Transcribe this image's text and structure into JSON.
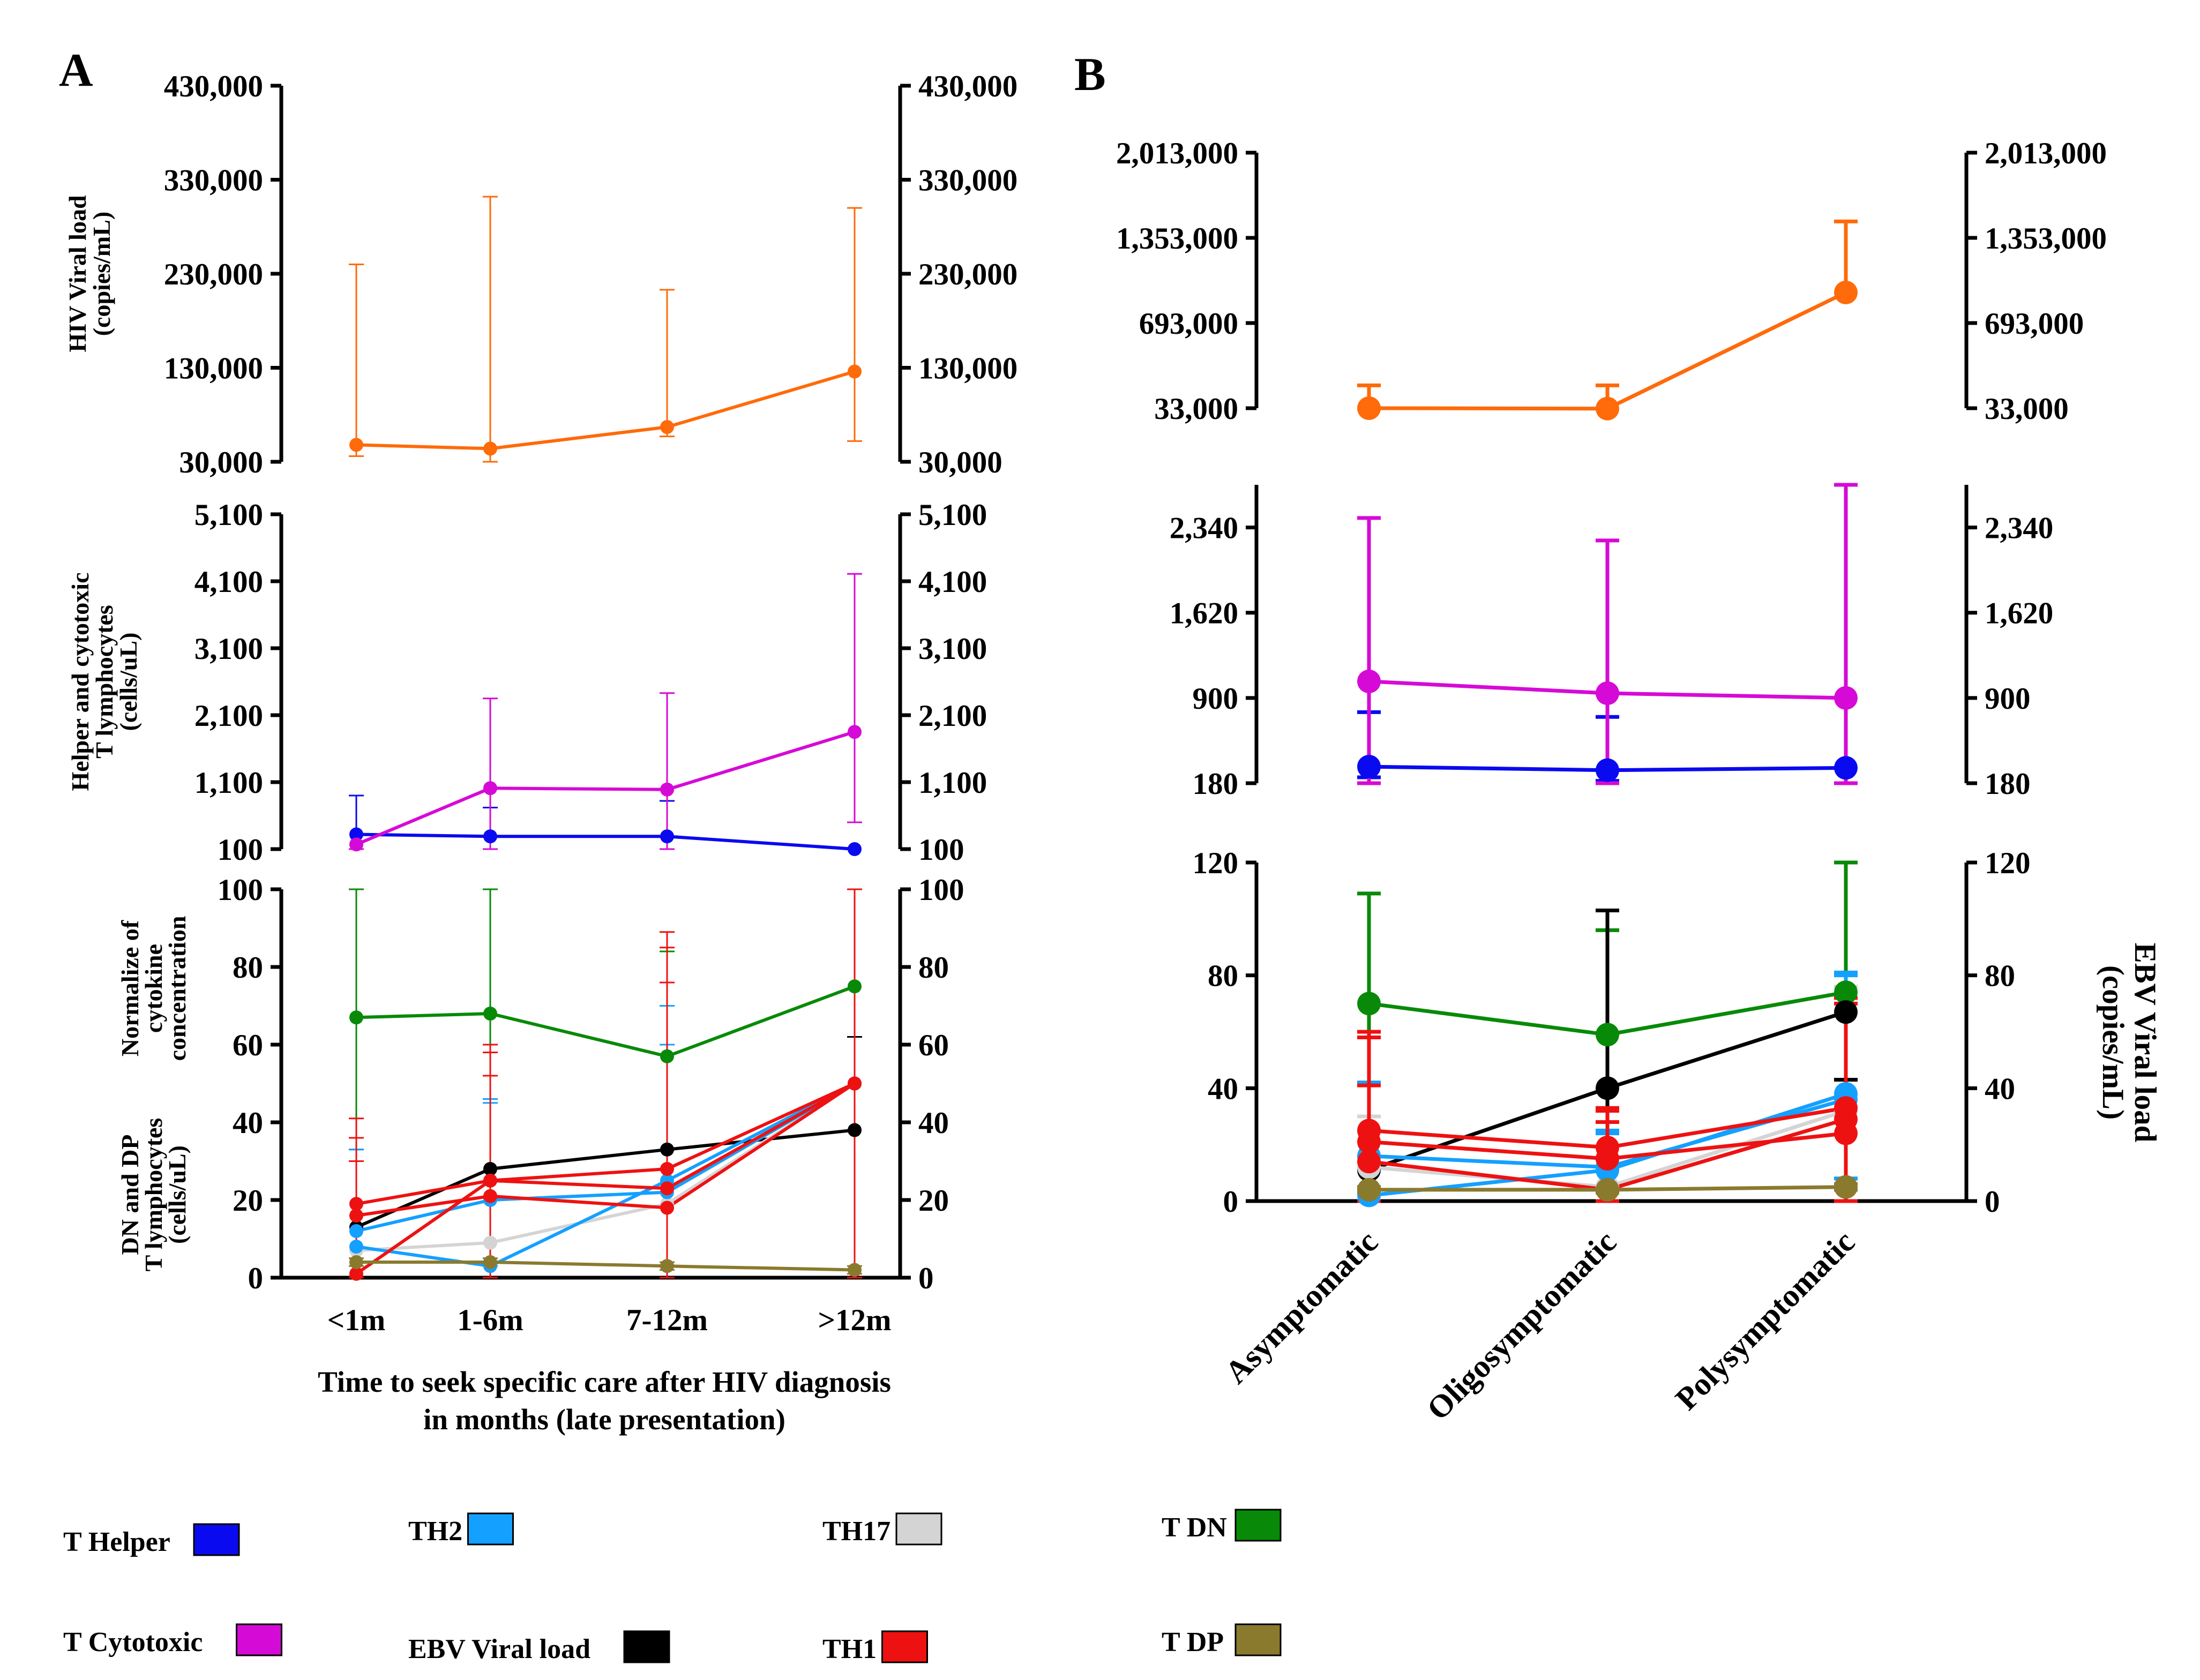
{
  "colors": {
    "t_helper": "#0a0af0",
    "t_cytotoxic": "#d60ad6",
    "th2": "#14a0ff",
    "th17": "#d4d4d4",
    "th1": "#ee1111",
    "t_dn": "#088a08",
    "t_dp": "#8a7a2e",
    "ebv": "#000000",
    "hiv": "#ff6a0a"
  },
  "legend": [
    {
      "label": "T Helper",
      "color_key": "t_helper"
    },
    {
      "label": "TH2",
      "color_key": "th2"
    },
    {
      "label": "TH17",
      "color_key": "th17"
    },
    {
      "label": "T DN",
      "color_key": "t_dn"
    },
    {
      "label": "T Cytotoxic",
      "color_key": "t_cytotoxic"
    },
    {
      "label": "EBV Viral load",
      "color_key": "ebv"
    },
    {
      "label": "TH1",
      "color_key": "th1"
    },
    {
      "label": "T DP",
      "color_key": "t_dp"
    }
  ],
  "chart_data": [
    {
      "panel": "A",
      "type": "line",
      "categories": [
        "<1m",
        "1-6m",
        "7-12m",
        ">12m"
      ],
      "xlabel": "Time to seek specific care after HIV diagnosis in months (late presentation)",
      "subplots": [
        {
          "id": "A1",
          "ylabel": [
            "HIV Viral load",
            "(copies/mL)"
          ],
          "ylim": [
            30000,
            430000
          ],
          "ticks": [
            30000,
            130000,
            230000,
            330000,
            430000
          ],
          "tick_labels": [
            "30,000",
            "130,000",
            "230,000",
            "330,000",
            "430,000"
          ],
          "series": [
            {
              "name": "HIV Viral load",
              "color_key": "hiv",
              "values": [
                48000,
                44000,
                67000,
                126000
              ],
              "err_hi": [
                240000,
                312000,
                213000,
                300000
              ],
              "err_lo": [
                36000,
                30000,
                57000,
                52000
              ],
              "err_width": 3
            }
          ]
        },
        {
          "id": "A2",
          "ylabel": [
            "Helper and cytotoxic",
            "T lymphocytes",
            "(cells/uL)"
          ],
          "ylim": [
            100,
            5100
          ],
          "ticks": [
            100,
            1100,
            2100,
            3100,
            4100,
            5100
          ],
          "tick_labels": [
            "100",
            "1,100",
            "2,100",
            "3,100",
            "4,100",
            "5,100"
          ],
          "series": [
            {
              "name": "T Helper",
              "color_key": "t_helper",
              "values": [
                320,
                290,
                290,
                100
              ],
              "err_hi": [
                900,
                720,
                820,
                100
              ],
              "err_lo": [
                100,
                100,
                100,
                100
              ],
              "err_width": 3
            },
            {
              "name": "T Cytotoxic",
              "color_key": "t_cytotoxic",
              "values": [
                170,
                1010,
                990,
                1850
              ],
              "err_hi": [
                100,
                2350,
                2430,
                4210
              ],
              "err_lo": [
                100,
                100,
                100,
                500
              ],
              "err_width": 3
            }
          ]
        },
        {
          "id": "A3",
          "ylabel": [
            "Normalize of",
            "cytokine",
            "concentration",
            "",
            "DN and DP",
            "T lymphocytes",
            "(cells/uL)"
          ],
          "ylim": [
            0,
            100
          ],
          "ticks": [
            0,
            20,
            40,
            60,
            80,
            100
          ],
          "tick_labels": [
            "0",
            "20",
            "40",
            "60",
            "80",
            "100"
          ],
          "series": [
            {
              "name": "T DN",
              "color_key": "t_dn",
              "values": [
                67,
                68,
                57,
                75
              ],
              "err_hi": [
                100,
                100,
                84,
                100
              ],
              "err_lo": [
                0,
                0,
                0,
                0
              ],
              "err_width": 3
            },
            {
              "name": "EBV Viral load",
              "color_key": "ebv",
              "values": [
                13,
                28,
                33,
                38
              ],
              "err_hi": [
                33,
                46,
                76,
                62
              ],
              "err_lo": [
                0,
                0,
                0,
                0
              ],
              "err_width": 3
            },
            {
              "name": "TH17",
              "color_key": "th17",
              "values": [
                7,
                9,
                19,
                50
              ],
              "err_hi": [
                33,
                46,
                76,
                100
              ],
              "err_lo": [
                0,
                0,
                0,
                0
              ],
              "err_width": 3
            },
            {
              "name": "TH2",
              "color_key": "th2",
              "values": [
                8,
                3,
                25,
                50
              ],
              "err_hi": [
                33,
                46,
                60,
                100
              ],
              "err_lo": [
                0,
                0,
                0,
                0
              ],
              "err_width": 3
            },
            {
              "name": "TH2 (b)",
              "color_key": "th2",
              "values": [
                12,
                20,
                22,
                50
              ],
              "err_hi": [
                30,
                45,
                70,
                100
              ],
              "err_lo": [
                0,
                0,
                0,
                0
              ],
              "err_width": 3
            },
            {
              "name": "TH1",
              "color_key": "th1",
              "values": [
                19,
                25,
                28,
                50
              ],
              "err_hi": [
                41,
                60,
                89,
                100
              ],
              "err_lo": [
                0,
                0,
                0,
                0
              ],
              "err_width": 3
            },
            {
              "name": "TH1 (b)",
              "color_key": "th1",
              "values": [
                16,
                21,
                18,
                50
              ],
              "err_hi": [
                36,
                58,
                85,
                100
              ],
              "err_lo": [
                0,
                0,
                0,
                0
              ],
              "err_width": 3
            },
            {
              "name": "TH1 (c)",
              "color_key": "th1",
              "values": [
                1,
                25,
                23,
                50
              ],
              "err_hi": [
                30,
                52,
                76,
                100
              ],
              "err_lo": [
                0,
                0,
                0,
                0
              ],
              "err_width": 3
            },
            {
              "name": "T DP",
              "color_key": "t_dp",
              "values": [
                4,
                4,
                3,
                2
              ],
              "err_hi": [
                5,
                5,
                4,
                3
              ],
              "err_lo": [
                3,
                3,
                2,
                1
              ],
              "err_width": 3
            }
          ]
        }
      ]
    },
    {
      "panel": "B",
      "type": "line",
      "categories": [
        "Asymptomatic",
        "Oligosymptomatic",
        "Polysymptomatic"
      ],
      "xlabel": "",
      "subplots": [
        {
          "id": "B1",
          "ylabel": [],
          "right_ylabel": [],
          "ylim": [
            33000,
            2013000
          ],
          "ticks": [
            33000,
            693000,
            1353000,
            2013000
          ],
          "tick_labels": [
            "33,000",
            "693,000",
            "1,353,000",
            "2,013,000"
          ],
          "series": [
            {
              "name": "HIV Viral load",
              "color_key": "hiv",
              "values": [
                33000,
                30000,
                930000
              ],
              "err_hi": [
                210000,
                210000,
                1480000
              ],
              "err_lo": [
                33000,
                30000,
                930000
              ],
              "err_width": 7
            }
          ]
        },
        {
          "id": "B2",
          "ylabel": [],
          "right_ylabel": [],
          "ylim": [
            180,
            2700
          ],
          "ticks": [
            180,
            900,
            1620,
            2340
          ],
          "tick_labels": [
            "180",
            "900",
            "1,620",
            "2,340"
          ],
          "series": [
            {
              "name": "T Helper",
              "color_key": "t_helper",
              "values": [
                320,
                290,
                310
              ],
              "err_hi": [
                780,
                740,
                310
              ],
              "err_lo": [
                230,
                200,
                310
              ],
              "err_width": 7
            },
            {
              "name": "T Cytotoxic",
              "color_key": "t_cytotoxic",
              "values": [
                1040,
                940,
                900
              ],
              "err_hi": [
                2420,
                2230,
                2700
              ],
              "err_lo": [
                180,
                180,
                180
              ],
              "err_width": 7
            }
          ]
        },
        {
          "id": "B3",
          "ylabel": [],
          "right_ylabel": [
            "EBV Viral load",
            "(copies/mL)"
          ],
          "ylim": [
            0,
            120
          ],
          "ticks": [
            0,
            40,
            80,
            120
          ],
          "tick_labels": [
            "0",
            "40",
            "80",
            "120"
          ],
          "series": [
            {
              "name": "T DN",
              "color_key": "t_dn",
              "values": [
                70,
                59,
                74
              ],
              "err_hi": [
                109,
                96,
                120
              ],
              "err_lo": [
                0,
                0,
                0
              ],
              "err_width": 7
            },
            {
              "name": "EBV Viral load",
              "color_key": "ebv",
              "values": [
                11,
                40,
                67
              ],
              "err_hi": [
                30,
                103,
                67
              ],
              "err_lo": [
                11,
                0,
                43
              ],
              "err_width": 7
            },
            {
              "name": "TH17",
              "color_key": "th17",
              "values": [
                12,
                5,
                32
              ],
              "err_hi": [
                30,
                25,
                76
              ],
              "err_lo": [
                0,
                0,
                0
              ],
              "err_width": 7
            },
            {
              "name": "TH2",
              "color_key": "th2",
              "values": [
                2,
                11,
                38
              ],
              "err_hi": [
                42,
                25,
                81
              ],
              "err_lo": [
                0,
                0,
                8
              ],
              "err_width": 7
            },
            {
              "name": "TH2 (b)",
              "color_key": "th2",
              "values": [
                16,
                12,
                36
              ],
              "err_hi": [
                42,
                24,
                80
              ],
              "err_lo": [
                0,
                0,
                8
              ],
              "err_width": 7
            },
            {
              "name": "TH1",
              "color_key": "th1",
              "values": [
                25,
                19,
                33
              ],
              "err_hi": [
                60,
                33,
                72
              ],
              "err_lo": [
                0,
                0,
                0
              ],
              "err_width": 7
            },
            {
              "name": "TH1 (b)",
              "color_key": "th1",
              "values": [
                21,
                15,
                24
              ],
              "err_hi": [
                58,
                32,
                72
              ],
              "err_lo": [
                0,
                0,
                0
              ],
              "err_width": 7
            },
            {
              "name": "TH1 (c)",
              "color_key": "th1",
              "values": [
                14,
                4,
                29
              ],
              "err_hi": [
                41,
                28,
                70
              ],
              "err_lo": [
                0,
                0,
                0
              ],
              "err_width": 7
            },
            {
              "name": "T DP",
              "color_key": "t_dp",
              "values": [
                4,
                4,
                5
              ],
              "err_hi": [
                5,
                5,
                6
              ],
              "err_lo": [
                3,
                3,
                4
              ],
              "err_width": 7
            }
          ]
        }
      ]
    }
  ]
}
